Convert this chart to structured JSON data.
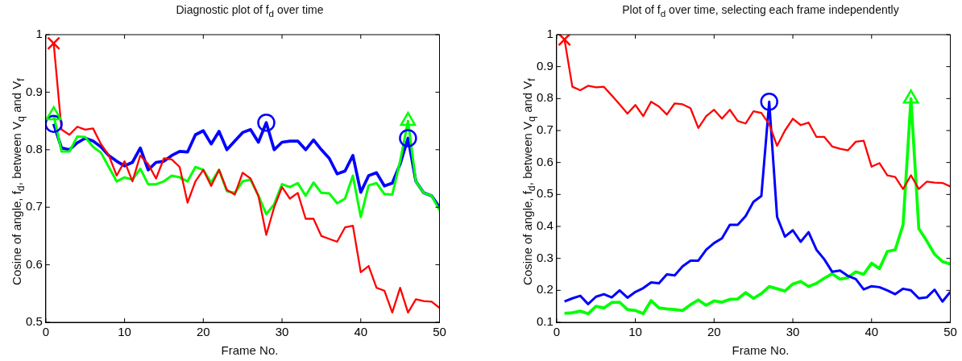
{
  "chart_data": [
    {
      "type": "line",
      "title": "Diagnostic plot of f$_{d}$ over time",
      "xlabel": "Frame No.",
      "ylabel": "Cosine of angle, f$_{d}$, between V$_{q}$ and V$_{f}$",
      "marker": "none",
      "x": [
        1,
        2,
        3,
        4,
        5,
        6,
        7,
        8,
        9,
        10,
        11,
        12,
        13,
        14,
        15,
        16,
        17,
        18,
        19,
        20,
        21,
        22,
        23,
        24,
        25,
        26,
        27,
        28,
        29,
        30,
        31,
        32,
        33,
        34,
        35,
        36,
        37,
        38,
        39,
        40,
        41,
        42,
        43,
        44,
        45,
        46,
        47,
        48,
        49,
        50
      ],
      "xlim": [
        0,
        50
      ],
      "xticks": [
        0,
        10,
        20,
        30,
        40,
        50
      ],
      "ylim": [
        0.5,
        1
      ],
      "yticks": [
        0.5,
        0.6,
        0.7,
        0.8,
        0.9,
        1
      ],
      "series": [
        {
          "color": "#ff0000",
          "values": [
            0.985,
            0.835,
            0.826,
            0.84,
            0.835,
            0.837,
            0.81,
            0.79,
            0.755,
            0.78,
            0.745,
            0.79,
            0.775,
            0.75,
            0.785,
            0.783,
            0.77,
            0.708,
            0.745,
            0.765,
            0.737,
            0.765,
            0.73,
            0.722,
            0.76,
            0.75,
            0.72,
            0.652,
            0.7,
            0.735,
            0.715,
            0.725,
            0.68,
            0.68,
            0.65,
            0.645,
            0.64,
            0.665,
            0.668,
            0.587,
            0.598,
            0.56,
            0.555,
            0.517,
            0.56,
            0.517,
            0.54,
            0.537,
            0.536,
            0.525
          ]
        },
        {
          "color": "#00ff00",
          "values": [
            0.86,
            0.797,
            0.797,
            0.823,
            0.822,
            0.805,
            0.795,
            0.77,
            0.745,
            0.752,
            0.748,
            0.767,
            0.74,
            0.74,
            0.745,
            0.755,
            0.752,
            0.745,
            0.77,
            0.765,
            0.743,
            0.765,
            0.728,
            0.725,
            0.745,
            0.748,
            0.72,
            0.688,
            0.705,
            0.74,
            0.735,
            0.742,
            0.72,
            0.743,
            0.725,
            0.724,
            0.707,
            0.715,
            0.755,
            0.683,
            0.738,
            0.742,
            0.723,
            0.722,
            0.78,
            0.85,
            0.745,
            0.725,
            0.72,
            0.695
          ]
        },
        {
          "color": "#0000ff",
          "values": [
            0.845,
            0.803,
            0.8,
            0.812,
            0.82,
            0.815,
            0.805,
            0.79,
            0.78,
            0.772,
            0.778,
            0.803,
            0.765,
            0.778,
            0.78,
            0.79,
            0.797,
            0.796,
            0.826,
            0.833,
            0.81,
            0.832,
            0.8,
            0.815,
            0.83,
            0.835,
            0.813,
            0.847,
            0.8,
            0.813,
            0.815,
            0.815,
            0.8,
            0.817,
            0.8,
            0.785,
            0.758,
            0.763,
            0.79,
            0.726,
            0.755,
            0.76,
            0.737,
            0.742,
            0.775,
            0.82,
            0.745,
            0.725,
            0.72,
            0.7
          ]
        },
        {
          "type": "scatter",
          "marker": "cross",
          "color": "#ff0000",
          "x": [
            1
          ],
          "values": [
            0.985
          ]
        },
        {
          "type": "scatter",
          "marker": "triangle",
          "color": "#00ff00",
          "x": [
            1,
            46
          ],
          "values": [
            0.86,
            0.85
          ]
        },
        {
          "type": "scatter",
          "marker": "circle",
          "color": "#0000ff",
          "x": [
            1,
            28,
            46
          ],
          "values": [
            0.845,
            0.847,
            0.82
          ]
        }
      ]
    },
    {
      "type": "line",
      "title": "Plot of  f$_{d}$ over time, selecting each frame independently",
      "xlabel": "Frame No.",
      "ylabel": "Cosine of angle, f$_{d}$, between V$_{q}$ and V$_{f}$",
      "marker": "none",
      "x": [
        1,
        2,
        3,
        4,
        5,
        6,
        7,
        8,
        9,
        10,
        11,
        12,
        13,
        14,
        15,
        16,
        17,
        18,
        19,
        20,
        21,
        22,
        23,
        24,
        25,
        26,
        27,
        28,
        29,
        30,
        31,
        32,
        33,
        34,
        35,
        36,
        37,
        38,
        39,
        40,
        41,
        42,
        43,
        44,
        45,
        46,
        47,
        48,
        49,
        50
      ],
      "xlim": [
        0,
        50
      ],
      "xticks": [
        0,
        10,
        20,
        30,
        40,
        50
      ],
      "ylim": [
        0.1,
        1
      ],
      "yticks": [
        0.1,
        0.2,
        0.3,
        0.4,
        0.5,
        0.6,
        0.7,
        0.8,
        0.9,
        1
      ],
      "series": [
        {
          "color": "#ff0000",
          "values": [
            0.985,
            0.837,
            0.826,
            0.84,
            0.835,
            0.837,
            0.81,
            0.782,
            0.753,
            0.78,
            0.745,
            0.79,
            0.775,
            0.75,
            0.785,
            0.782,
            0.77,
            0.708,
            0.745,
            0.765,
            0.737,
            0.765,
            0.73,
            0.722,
            0.76,
            0.755,
            0.72,
            0.652,
            0.7,
            0.737,
            0.717,
            0.725,
            0.68,
            0.68,
            0.65,
            0.643,
            0.638,
            0.665,
            0.668,
            0.587,
            0.598,
            0.56,
            0.555,
            0.517,
            0.56,
            0.517,
            0.54,
            0.537,
            0.536,
            0.525
          ]
        },
        {
          "color": "#0000ff",
          "values": [
            0.165,
            0.175,
            0.183,
            0.157,
            0.18,
            0.188,
            0.178,
            0.2,
            0.177,
            0.195,
            0.207,
            0.225,
            0.222,
            0.25,
            0.247,
            0.275,
            0.293,
            0.293,
            0.327,
            0.348,
            0.363,
            0.405,
            0.405,
            0.432,
            0.477,
            0.495,
            0.79,
            0.43,
            0.368,
            0.388,
            0.352,
            0.382,
            0.327,
            0.297,
            0.258,
            0.262,
            0.245,
            0.235,
            0.203,
            0.213,
            0.21,
            0.2,
            0.188,
            0.205,
            0.2,
            0.175,
            0.178,
            0.202,
            0.165,
            0.195
          ]
        },
        {
          "color": "#00ff00",
          "values": [
            0.128,
            0.13,
            0.135,
            0.127,
            0.15,
            0.145,
            0.162,
            0.163,
            0.14,
            0.137,
            0.127,
            0.168,
            0.145,
            0.142,
            0.14,
            0.137,
            0.155,
            0.17,
            0.153,
            0.167,
            0.163,
            0.172,
            0.173,
            0.193,
            0.175,
            0.19,
            0.212,
            0.205,
            0.198,
            0.22,
            0.228,
            0.212,
            0.222,
            0.238,
            0.252,
            0.235,
            0.24,
            0.258,
            0.25,
            0.285,
            0.268,
            0.322,
            0.327,
            0.405,
            0.8,
            0.393,
            0.355,
            0.313,
            0.29,
            0.282
          ]
        },
        {
          "type": "scatter",
          "marker": "cross",
          "color": "#ff0000",
          "x": [
            1
          ],
          "values": [
            0.985
          ]
        },
        {
          "type": "scatter",
          "marker": "circle",
          "color": "#0000ff",
          "x": [
            27
          ],
          "values": [
            0.79
          ]
        },
        {
          "type": "scatter",
          "marker": "triangle",
          "color": "#00ff00",
          "x": [
            45
          ],
          "values": [
            0.8
          ]
        }
      ]
    }
  ]
}
